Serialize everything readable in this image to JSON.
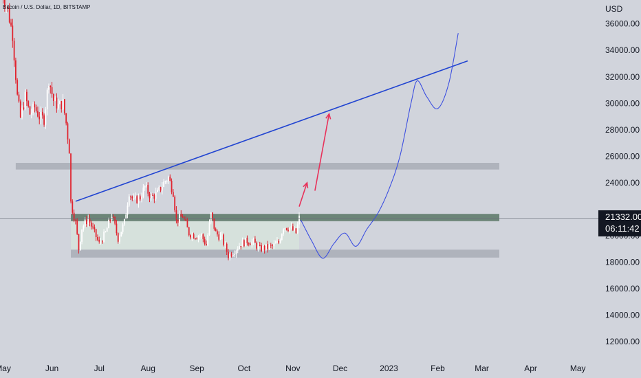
{
  "header": {
    "symbol_label": "Bitcoin / U.S. Dollar, 1D, BITSTAMP",
    "currency": "USD"
  },
  "colors": {
    "background": "#d1d4dc",
    "up_candle": "#ffffff",
    "down_candle": "#e0242f",
    "trendline": "#2245d1",
    "projection": "#3c4fe0",
    "arrow": "#e8315a",
    "zone_gray": "#a9adb6",
    "zone_green": "#5a7766",
    "range_fill": "#d6e2dc",
    "price_badge": "#131722"
  },
  "price_badge": {
    "price": "21332.00",
    "countdown": "06:11:42"
  },
  "chart_data": {
    "type": "candlestick",
    "title": "Bitcoin / U.S. Dollar, 1D, BITSTAMP",
    "x_axis": {
      "tick_labels": [
        "May",
        "Jun",
        "Jul",
        "Aug",
        "Sep",
        "Oct",
        "Nov",
        "Dec",
        "2023",
        "Feb",
        "Mar",
        "Apr",
        "May"
      ],
      "range": [
        "2022-04-29",
        "2023-05-14"
      ]
    },
    "y_axis": {
      "unit": "USD",
      "range": [
        10400,
        37800
      ],
      "tick_labels": [
        "12000.00",
        "14000.00",
        "16000.00",
        "18000.00",
        "20000.00",
        "22000.00",
        "24000.00",
        "26000.00",
        "28000.00",
        "30000.00",
        "32000.00",
        "34000.00",
        "36000.00"
      ],
      "scale": "linear",
      "grid": false
    },
    "current_price": 21332,
    "price_path": [
      [
        "2022-04-30",
        38500
      ],
      [
        "2022-05-04",
        37000
      ],
      [
        "2022-05-07",
        35200
      ],
      [
        "2022-05-10",
        30500
      ],
      [
        "2022-05-12",
        28900
      ],
      [
        "2022-05-15",
        30500
      ],
      [
        "2022-05-18",
        29200
      ],
      [
        "2022-05-21",
        29700
      ],
      [
        "2022-05-24",
        29000
      ],
      [
        "2022-05-27",
        28800
      ],
      [
        "2022-05-30",
        31800
      ],
      [
        "2022-06-02",
        30200
      ],
      [
        "2022-06-05",
        29800
      ],
      [
        "2022-06-08",
        30000
      ],
      [
        "2022-06-10",
        28500
      ],
      [
        "2022-06-12",
        26500
      ],
      [
        "2022-06-13",
        22500
      ],
      [
        "2022-06-16",
        21000
      ],
      [
        "2022-06-18",
        19000
      ],
      [
        "2022-06-20",
        20600
      ],
      [
        "2022-06-24",
        21300
      ],
      [
        "2022-06-28",
        20200
      ],
      [
        "2022-07-01",
        19400
      ],
      [
        "2022-07-05",
        20200
      ],
      [
        "2022-07-09",
        21600
      ],
      [
        "2022-07-13",
        19800
      ],
      [
        "2022-07-17",
        21000
      ],
      [
        "2022-07-20",
        23300
      ],
      [
        "2022-07-23",
        22600
      ],
      [
        "2022-07-27",
        22900
      ],
      [
        "2022-07-30",
        23700
      ],
      [
        "2022-08-03",
        22900
      ],
      [
        "2022-08-07",
        23200
      ],
      [
        "2022-08-11",
        24000
      ],
      [
        "2022-08-14",
        24400
      ],
      [
        "2022-08-17",
        23300
      ],
      [
        "2022-08-19",
        21100
      ],
      [
        "2022-08-23",
        21500
      ],
      [
        "2022-08-27",
        20200
      ],
      [
        "2022-08-31",
        20000
      ],
      [
        "2022-09-04",
        20000
      ],
      [
        "2022-09-07",
        19300
      ],
      [
        "2022-09-10",
        21600
      ],
      [
        "2022-09-13",
        20200
      ],
      [
        "2022-09-17",
        19800
      ],
      [
        "2022-09-21",
        18500
      ],
      [
        "2022-09-25",
        18900
      ],
      [
        "2022-09-29",
        19400
      ],
      [
        "2022-10-03",
        19600
      ],
      [
        "2022-10-07",
        19500
      ],
      [
        "2022-10-11",
        19000
      ],
      [
        "2022-10-15",
        19100
      ],
      [
        "2022-10-19",
        19200
      ],
      [
        "2022-10-23",
        19500
      ],
      [
        "2022-10-26",
        20700
      ],
      [
        "2022-10-30",
        20600
      ],
      [
        "2022-11-03",
        20200
      ],
      [
        "2022-11-05",
        21332
      ]
    ],
    "zones": [
      {
        "y_low": 25000,
        "y_high": 25500,
        "x_start": "2022-05-09",
        "x_end": "2023-05-14",
        "color": "gray"
      },
      {
        "y_low": 21100,
        "y_high": 21650,
        "x_start": "2022-06-13",
        "x_end": "2023-05-14",
        "color": "green"
      },
      {
        "y_low": 18350,
        "y_high": 18950,
        "x_start": "2022-06-13",
        "x_end": "2023-05-14",
        "color": "gray"
      },
      {
        "y_low": 18950,
        "y_high": 21100,
        "x_start": "2022-06-13",
        "x_end": "2022-11-05",
        "color": "range_fill"
      }
    ],
    "trendline": {
      "points": [
        [
          "2022-06-16",
          22600
        ],
        [
          "2023-02-20",
          33200
        ]
      ]
    },
    "projection": [
      [
        "2022-11-06",
        21200
      ],
      [
        "2022-11-13",
        19600
      ],
      [
        "2022-11-20",
        18300
      ],
      [
        "2022-11-27",
        19400
      ],
      [
        "2022-12-04",
        20200
      ],
      [
        "2022-12-11",
        19200
      ],
      [
        "2022-12-18",
        20500
      ],
      [
        "2022-12-25",
        21700
      ],
      [
        "2023-01-01",
        23500
      ],
      [
        "2023-01-08",
        26000
      ],
      [
        "2023-01-15",
        30000
      ],
      [
        "2023-01-19",
        31700
      ],
      [
        "2023-01-25",
        30500
      ],
      [
        "2023-02-01",
        29600
      ],
      [
        "2023-02-08",
        31500
      ],
      [
        "2023-02-14",
        35300
      ]
    ],
    "arrows": [
      {
        "from": [
          "2022-11-05",
          22200
        ],
        "to": [
          "2022-11-10",
          24000
        ]
      },
      {
        "from": [
          "2022-11-15",
          23400
        ],
        "to": [
          "2022-11-24",
          29200
        ]
      }
    ]
  }
}
